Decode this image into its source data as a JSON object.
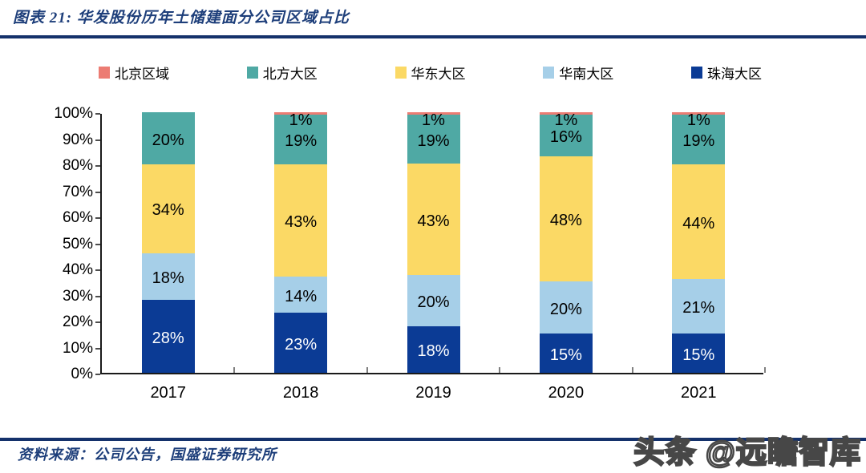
{
  "figure": {
    "title": "图表 21: 华发股份历年土储建面分公司区域占比",
    "source_label": "资料来源：公司公告，国盛证券研究所",
    "watermark": "头条 @远瞻智库",
    "accent_color": "#14316B",
    "title_color": "#1D3E7A"
  },
  "legend": {
    "position": "top",
    "items": [
      {
        "label": "北京区域",
        "color": "#EC7C73"
      },
      {
        "label": "北方大区",
        "color": "#4FA9A4"
      },
      {
        "label": "华东大区",
        "color": "#FBD965"
      },
      {
        "label": "华南大区",
        "color": "#A6CFE8"
      },
      {
        "label": "珠海大区",
        "color": "#0B3B95"
      }
    ]
  },
  "chart_data": {
    "type": "bar",
    "stacked": true,
    "title": "华发股份历年土储建面分公司区域占比",
    "categories": [
      "2017",
      "2018",
      "2019",
      "2020",
      "2021"
    ],
    "series": [
      {
        "name": "珠海大区",
        "color": "#0B3B95",
        "label_color": "#FFFFFF",
        "values": [
          28,
          23,
          18,
          15,
          15
        ]
      },
      {
        "name": "华南大区",
        "color": "#A6CFE8",
        "label_color": "#000000",
        "values": [
          18,
          14,
          20,
          20,
          21
        ]
      },
      {
        "name": "华东大区",
        "color": "#FBD965",
        "label_color": "#000000",
        "values": [
          34,
          43,
          43,
          48,
          44
        ]
      },
      {
        "name": "北方大区",
        "color": "#4FA9A4",
        "label_color": "#000000",
        "values": [
          20,
          19,
          19,
          16,
          19
        ]
      },
      {
        "name": "北京区域",
        "color": "#EC7C73",
        "label_color": "#000000",
        "values": [
          0,
          1,
          1,
          1,
          1
        ]
      }
    ],
    "data_label_format": "{value}%",
    "xlabel": "",
    "ylabel": "",
    "ylim": [
      0,
      100
    ],
    "ytick_step": 10,
    "ytick_format": "{value}%",
    "grid": false,
    "legend_position": "top"
  }
}
